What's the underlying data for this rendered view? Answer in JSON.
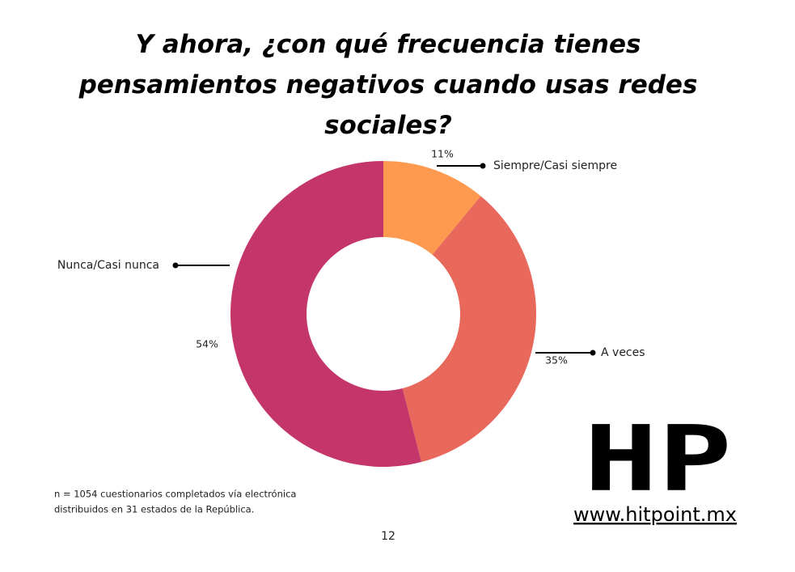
{
  "chart_data": {
    "type": "pie",
    "donut": true,
    "title": "Y ahora, ¿con qué frecuencia tienes pensamientos negativos cuando usas redes sociales?",
    "categories": [
      "Siempre/Casi siempre",
      "A veces",
      "Nunca/Casi nunca"
    ],
    "values": [
      11,
      35,
      54
    ],
    "value_labels": [
      "11%",
      "35%",
      "54%"
    ],
    "colors": [
      "#fd9a4f",
      "#e8685c",
      "#c4366a"
    ]
  },
  "footnote": [
    "n = 1054 cuestionarios completados vía electrónica",
    "distribuidos en 31 estados de la República."
  ],
  "page_number": "12",
  "logo": {
    "text": "HP",
    "url": "www.hitpoint.mx"
  }
}
